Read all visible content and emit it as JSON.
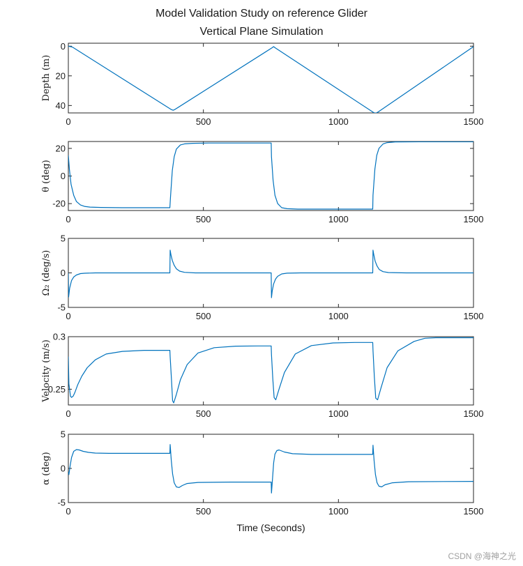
{
  "title_line1": "Model Validation Study on reference Glider",
  "title_line2": "Vertical Plane Simulation",
  "xlabel": "Time (Seconds)",
  "watermark": "CSDN @海神之光",
  "colors": {
    "line": "#0072bd",
    "axis": "#262626",
    "text": "#1a1a1a"
  },
  "chart_data": [
    {
      "type": "line",
      "name": "depth",
      "ylabel": "Depth (m)",
      "xlim": [
        0,
        1500
      ],
      "ylim": [
        45,
        -2
      ],
      "y_reversed": true,
      "xticks": [
        0,
        500,
        1000,
        1500
      ],
      "yticks": [
        0,
        20,
        40
      ],
      "ytick_labels": [
        "0",
        "20",
        "40"
      ],
      "series": [
        {
          "name": "depth",
          "x": [
            0,
            15,
            380,
            388,
            395,
            755,
            760,
            765,
            1130,
            1138,
            1145,
            1500
          ],
          "y": [
            0,
            0.6,
            42.6,
            43.2,
            42.6,
            1.0,
            0.3,
            1.0,
            44.7,
            45.2,
            44.6,
            0.3
          ]
        }
      ]
    },
    {
      "type": "line",
      "name": "pitch",
      "ylabel": "θ (deg)",
      "xlim": [
        0,
        1500
      ],
      "ylim": [
        -25,
        25
      ],
      "xticks": [
        0,
        500,
        1000,
        1500
      ],
      "yticks": [
        -20,
        0,
        20
      ],
      "ytick_labels": [
        "-20",
        "0",
        "20"
      ],
      "series": [
        {
          "name": "pitch",
          "x": [
            0,
            4,
            10,
            20,
            30,
            45,
            60,
            80,
            120,
            200,
            376,
            378,
            385,
            392,
            400,
            415,
            430,
            460,
            520,
            751,
            752,
            758,
            765,
            775,
            790,
            810,
            850,
            900,
            1127,
            1128,
            1135,
            1142,
            1150,
            1165,
            1180,
            1210,
            1300,
            1500
          ],
          "y": [
            15,
            5,
            -6,
            -14,
            -18.5,
            -21,
            -22,
            -22.5,
            -22.8,
            -23,
            -23,
            -16,
            4,
            14,
            19.5,
            22.5,
            23.3,
            23.7,
            23.9,
            23.9,
            14,
            -3,
            -14,
            -20,
            -23,
            -23.7,
            -24,
            -24,
            -24,
            -14,
            5,
            15,
            20,
            23.2,
            24.2,
            24.7,
            24.8,
            24.8
          ]
        }
      ]
    },
    {
      "type": "line",
      "name": "pitch-rate",
      "ylabel": "Ω₂ (deg/s)",
      "xlim": [
        0,
        1500
      ],
      "ylim": [
        -5,
        5
      ],
      "xticks": [
        0,
        500,
        1000,
        1500
      ],
      "yticks": [
        -5,
        0,
        5
      ],
      "ytick_labels": [
        "-5",
        "0",
        "5"
      ],
      "series": [
        {
          "name": "pitch-rate",
          "x": [
            0,
            1,
            5,
            12,
            20,
            30,
            45,
            60,
            100,
            376,
            377,
            380,
            385,
            392,
            400,
            412,
            430,
            470,
            751,
            752,
            755,
            760,
            767,
            775,
            790,
            810,
            860,
            1127,
            1128,
            1131,
            1136,
            1143,
            1151,
            1165,
            1185,
            1250,
            1500
          ],
          "y": [
            0,
            -3.5,
            -2.2,
            -1.1,
            -0.6,
            -0.3,
            -0.1,
            -0.05,
            0,
            0,
            3.3,
            2.6,
            1.8,
            1.1,
            0.6,
            0.25,
            0.08,
            0,
            0,
            -3.6,
            -2.6,
            -1.6,
            -0.9,
            -0.5,
            -0.15,
            -0.04,
            0,
            0,
            3.3,
            2.6,
            1.7,
            1.0,
            0.5,
            0.18,
            0.05,
            0,
            0
          ]
        }
      ]
    },
    {
      "type": "line",
      "name": "velocity",
      "ylabel": "Velocity (m/s)",
      "xlim": [
        0,
        1500
      ],
      "ylim": [
        0.235,
        0.3
      ],
      "xticks": [
        0,
        500,
        1000,
        1500
      ],
      "yticks": [
        0.25,
        0.3
      ],
      "ytick_labels": [
        "0.25",
        "0.3"
      ],
      "series": [
        {
          "name": "velocity",
          "x": [
            0,
            2,
            8,
            12,
            18,
            25,
            35,
            50,
            70,
            100,
            140,
            200,
            280,
            376,
            377,
            382,
            386,
            390,
            400,
            415,
            440,
            480,
            540,
            620,
            700,
            751,
            752,
            757,
            762,
            768,
            780,
            800,
            840,
            900,
            980,
            1060,
            1127,
            1128,
            1133,
            1138,
            1145,
            1158,
            1180,
            1220,
            1280,
            1320,
            1360,
            1500
          ],
          "y": [
            0.281,
            0.255,
            0.2432,
            0.2422,
            0.2435,
            0.2475,
            0.2545,
            0.2625,
            0.2705,
            0.278,
            0.2835,
            0.286,
            0.287,
            0.287,
            0.281,
            0.258,
            0.239,
            0.237,
            0.245,
            0.259,
            0.2735,
            0.2845,
            0.2895,
            0.291,
            0.2912,
            0.2912,
            0.283,
            0.26,
            0.242,
            0.24,
            0.25,
            0.266,
            0.2835,
            0.2915,
            0.294,
            0.2945,
            0.2945,
            0.287,
            0.262,
            0.2415,
            0.24,
            0.2515,
            0.2705,
            0.2865,
            0.2955,
            0.2985,
            0.299,
            0.299
          ]
        }
      ]
    },
    {
      "type": "line",
      "name": "angle-of-attack",
      "ylabel": "α (deg)",
      "xlim": [
        0,
        1500
      ],
      "ylim": [
        -5,
        5
      ],
      "xticks": [
        0,
        500,
        1000,
        1500
      ],
      "yticks": [
        -5,
        0,
        5
      ],
      "ytick_labels": [
        "-5",
        "0",
        "5"
      ],
      "series": [
        {
          "name": "angle-of-attack",
          "x": [
            0,
            2,
            6,
            12,
            20,
            30,
            40,
            55,
            75,
            100,
            150,
            376,
            377,
            381,
            386,
            392,
            400,
            410,
            422,
            440,
            480,
            600,
            751,
            752,
            756,
            760,
            765,
            772,
            780,
            800,
            830,
            900,
            1127,
            1128,
            1132,
            1137,
            1143,
            1150,
            1160,
            1172,
            1200,
            1260,
            1500
          ],
          "y": [
            -0.5,
            -0.9,
            0.2,
            1.6,
            2.5,
            2.75,
            2.7,
            2.5,
            2.35,
            2.25,
            2.2,
            2.2,
            3.5,
            1.2,
            -0.8,
            -2.1,
            -2.7,
            -2.8,
            -2.5,
            -2.2,
            -2.05,
            -2.0,
            -2.0,
            -3.6,
            -1.5,
            0.8,
            2.1,
            2.6,
            2.7,
            2.4,
            2.15,
            2.05,
            2.05,
            3.4,
            1.1,
            -0.9,
            -2.1,
            -2.6,
            -2.7,
            -2.4,
            -2.1,
            -1.95,
            -1.9
          ]
        }
      ]
    }
  ]
}
